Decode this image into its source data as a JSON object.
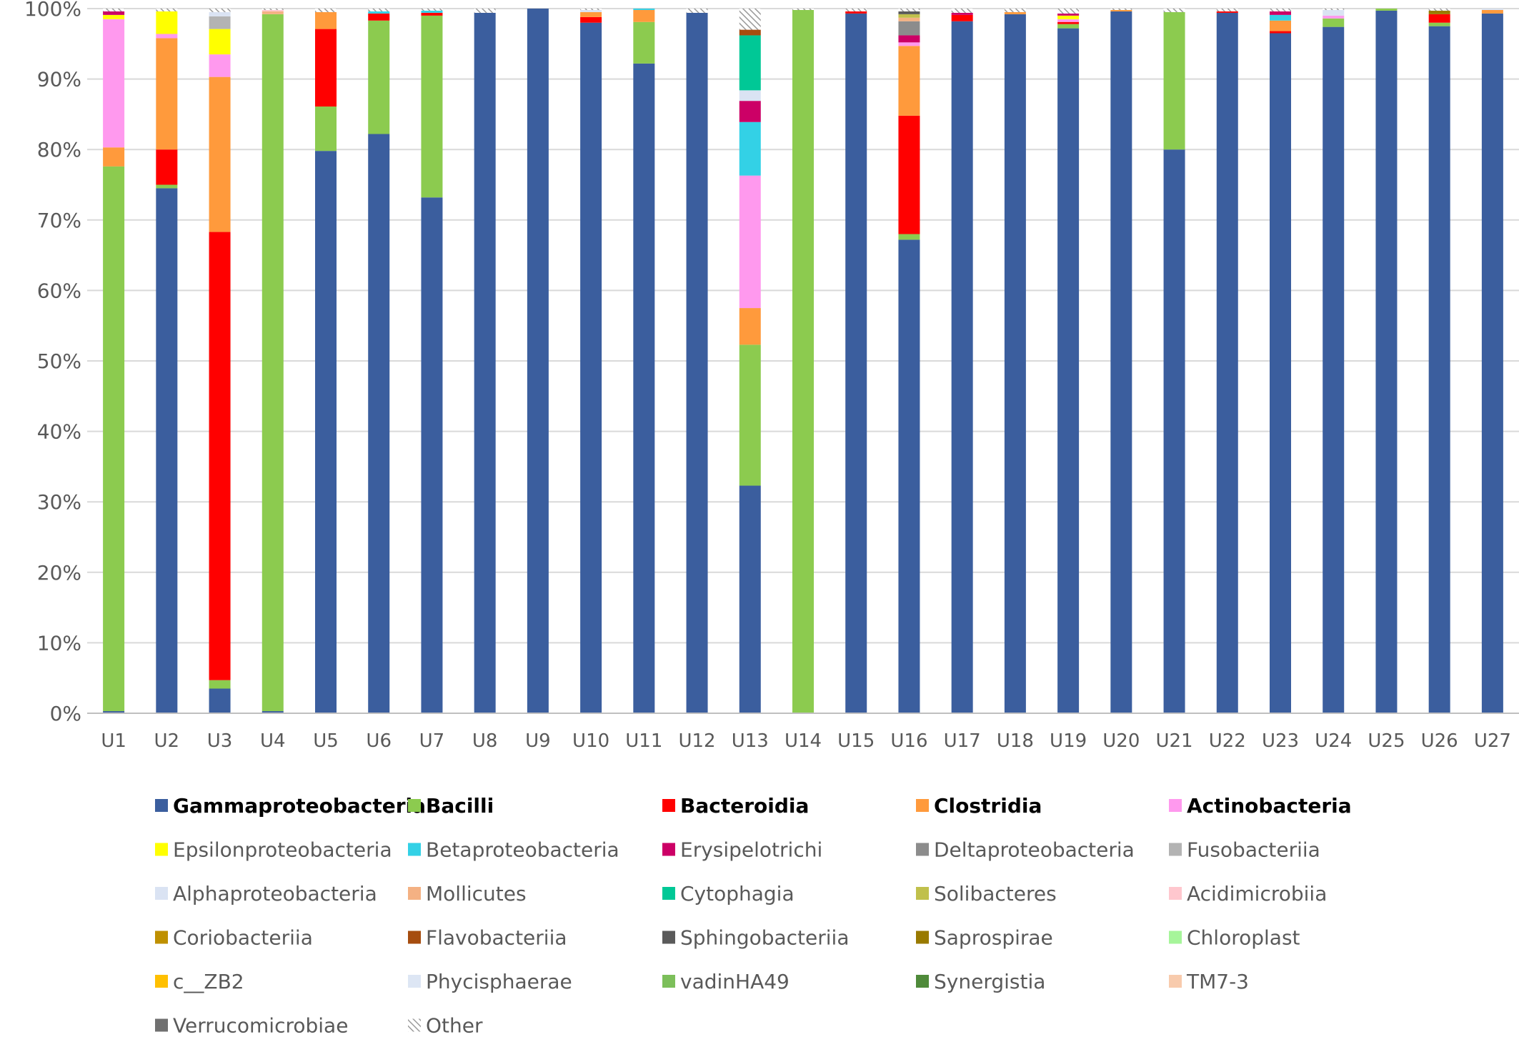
{
  "chart_data": {
    "type": "bar",
    "stacked": true,
    "title": "",
    "xlabel": "",
    "ylabel": "",
    "ylim": [
      0,
      100
    ],
    "y_tick_values": [
      0,
      10,
      20,
      30,
      40,
      50,
      60,
      70,
      80,
      90,
      100
    ],
    "y_tick_labels": [
      "0%",
      "10%",
      "20%",
      "30%",
      "40%",
      "50%",
      "60%",
      "70%",
      "80%",
      "90%",
      "100%"
    ],
    "grid": true,
    "legend_position": "bottom",
    "categories": [
      "U1",
      "U2",
      "U3",
      "U4",
      "U5",
      "U6",
      "U7",
      "U8",
      "U9",
      "U10",
      "U11",
      "U12",
      "U13",
      "U14",
      "U15",
      "U16",
      "U17",
      "U18",
      "U19",
      "U20",
      "U21",
      "U22",
      "U23",
      "U24",
      "U25",
      "U26",
      "U27"
    ],
    "series": [
      {
        "name": "Gammaproteobacteria",
        "color": "#3b5e9e",
        "bold": true,
        "values": [
          0.3,
          74.5,
          3.5,
          0.3,
          79.8,
          82.2,
          73.2,
          99.4,
          100,
          98,
          92.2,
          99.4,
          32.3,
          0,
          99.3,
          67.2,
          98.2,
          99.2,
          97.2,
          99.6,
          80,
          99.4,
          96.5,
          97.4,
          99.7,
          97.5,
          99.3
        ]
      },
      {
        "name": "Bacilli",
        "color": "#8ccb4f",
        "bold": true,
        "values": [
          77.3,
          0.5,
          1.2,
          98.9,
          6.3,
          16.1,
          25.8,
          0,
          0,
          0,
          5.9,
          0,
          20,
          99.8,
          0,
          0.8,
          0,
          0,
          0.6,
          0,
          19.5,
          0,
          0,
          1.2,
          0.3,
          0.5,
          0
        ]
      },
      {
        "name": "Bacteroidia",
        "color": "#ff0000",
        "bold": true,
        "values": [
          0,
          5,
          63.6,
          0,
          11,
          1,
          0.4,
          0,
          0,
          0.8,
          0,
          0,
          0,
          0,
          0.3,
          16.8,
          0.9,
          0,
          0.3,
          0,
          0,
          0.2,
          0.3,
          0,
          0,
          1.2,
          0
        ]
      },
      {
        "name": "Clostridia",
        "color": "#ff9a3c",
        "bold": true,
        "values": [
          2.7,
          15.8,
          22,
          0,
          2.4,
          0,
          0,
          0,
          0,
          0.7,
          1.7,
          0,
          5.2,
          0,
          0,
          9.9,
          0,
          0.3,
          0,
          0.2,
          0,
          0,
          1.5,
          0,
          0,
          0,
          0.5
        ]
      },
      {
        "name": "Actinobacteria",
        "color": "#ff99ee",
        "bold": true,
        "values": [
          18.2,
          0.6,
          3.2,
          0,
          0,
          0,
          0,
          0,
          0,
          0,
          0,
          0,
          18.8,
          0,
          0,
          0.5,
          0,
          0,
          0.4,
          0,
          0,
          0,
          0,
          0.4,
          0,
          0,
          0
        ]
      },
      {
        "name": "Epsilonproteobacteria",
        "color": "#ffff00",
        "values": [
          0.6,
          3.2,
          3.6,
          0,
          0,
          0,
          0,
          0,
          0,
          0,
          0,
          0,
          0,
          0,
          0,
          0,
          0,
          0,
          0.5,
          0,
          0,
          0,
          0,
          0,
          0,
          0,
          0
        ]
      },
      {
        "name": "Betaproteobacteria",
        "color": "#33d1e6",
        "values": [
          0,
          0,
          0,
          0,
          0,
          0.3,
          0.3,
          0,
          0,
          0,
          0.2,
          0,
          7.6,
          0,
          0,
          0,
          0,
          0,
          0,
          0,
          0,
          0,
          0.8,
          0,
          0,
          0,
          0
        ]
      },
      {
        "name": "Erysipelotrichi",
        "color": "#cc0066",
        "values": [
          0.5,
          0,
          0,
          0,
          0,
          0,
          0,
          0,
          0,
          0,
          0,
          0,
          3,
          0,
          0,
          1,
          0.3,
          0,
          0.3,
          0,
          0,
          0,
          0.5,
          0,
          0,
          0,
          0
        ]
      },
      {
        "name": "Deltaproteobacteria",
        "color": "#8c8c8c",
        "values": [
          0,
          0,
          0,
          0,
          0,
          0,
          0,
          0,
          0,
          0,
          0,
          0,
          0,
          0,
          0,
          2,
          0,
          0,
          0,
          0,
          0,
          0,
          0,
          0,
          0,
          0,
          0
        ]
      },
      {
        "name": "Fusobacteriia",
        "color": "#b3b3b3",
        "values": [
          0,
          0,
          1.8,
          0,
          0,
          0,
          0,
          0,
          0,
          0,
          0,
          0,
          0,
          0,
          0,
          0,
          0,
          0,
          0,
          0,
          0,
          0,
          0,
          0,
          0,
          0,
          0
        ]
      },
      {
        "name": "Alphaproteobacteria",
        "color": "#dae3f3",
        "values": [
          0,
          0,
          0.6,
          0,
          0,
          0,
          0,
          0,
          0,
          0.3,
          0,
          0,
          1.5,
          0,
          0,
          0,
          0,
          0,
          0,
          0,
          0,
          0,
          0,
          0.8,
          0,
          0,
          0.2
        ]
      },
      {
        "name": "Mollicutes",
        "color": "#f4b183",
        "values": [
          0,
          0,
          0,
          0.4,
          0,
          0,
          0,
          0,
          0,
          0,
          0,
          0,
          0,
          0,
          0,
          0.5,
          0,
          0,
          0,
          0,
          0,
          0,
          0,
          0,
          0,
          0,
          0
        ]
      },
      {
        "name": "Cytophagia",
        "color": "#00c896",
        "values": [
          0,
          0,
          0,
          0,
          0,
          0,
          0,
          0,
          0,
          0,
          0,
          0,
          7.8,
          0,
          0,
          0,
          0,
          0,
          0,
          0,
          0,
          0,
          0,
          0,
          0,
          0,
          0
        ]
      },
      {
        "name": "Solibacteres",
        "color": "#c0c04c",
        "values": [
          0,
          0,
          0,
          0,
          0,
          0,
          0,
          0,
          0,
          0,
          0,
          0,
          0,
          0,
          0,
          0.5,
          0,
          0,
          0,
          0,
          0,
          0,
          0,
          0,
          0,
          0,
          0
        ]
      },
      {
        "name": "Acidimicrobiia",
        "color": "#ffc7ce",
        "values": [
          0,
          0,
          0,
          0.2,
          0,
          0,
          0,
          0,
          0,
          0,
          0,
          0,
          0,
          0,
          0,
          0,
          0,
          0,
          0,
          0,
          0,
          0,
          0,
          0,
          0,
          0,
          0
        ]
      },
      {
        "name": "Coriobacteriia",
        "color": "#bf9000",
        "values": [
          0,
          0,
          0,
          0,
          0,
          0,
          0,
          0,
          0,
          0,
          0,
          0,
          0,
          0,
          0,
          0,
          0,
          0,
          0,
          0,
          0,
          0,
          0,
          0,
          0,
          0,
          0
        ]
      },
      {
        "name": "Flavobacteriia",
        "color": "#a64d0f",
        "values": [
          0,
          0,
          0,
          0,
          0,
          0,
          0,
          0,
          0,
          0,
          0,
          0,
          0.8,
          0,
          0,
          0,
          0,
          0,
          0,
          0,
          0,
          0,
          0,
          0,
          0,
          0,
          0
        ]
      },
      {
        "name": "Sphingobacteriia",
        "color": "#5a5a5a",
        "values": [
          0,
          0,
          0,
          0,
          0,
          0,
          0,
          0,
          0,
          0,
          0,
          0,
          0,
          0,
          0,
          0.4,
          0,
          0,
          0,
          0,
          0,
          0,
          0,
          0,
          0,
          0,
          0
        ]
      },
      {
        "name": "Saprospirae",
        "color": "#997a00",
        "values": [
          0,
          0,
          0,
          0,
          0,
          0,
          0,
          0,
          0,
          0,
          0,
          0,
          0,
          0,
          0,
          0,
          0,
          0,
          0,
          0,
          0,
          0,
          0,
          0,
          0,
          0.5,
          0
        ]
      },
      {
        "name": "Chloroplast",
        "color": "#a6f59a",
        "values": [
          0,
          0,
          0,
          0,
          0,
          0,
          0,
          0,
          0,
          0,
          0,
          0,
          0,
          0,
          0,
          0,
          0,
          0,
          0,
          0,
          0,
          0,
          0,
          0,
          0,
          0,
          0
        ]
      },
      {
        "name": "c__ZB2",
        "color": "#ffc000",
        "values": [
          0,
          0,
          0,
          0,
          0,
          0,
          0,
          0,
          0,
          0,
          0,
          0,
          0,
          0,
          0,
          0,
          0,
          0,
          0,
          0,
          0,
          0,
          0,
          0,
          0,
          0,
          0
        ]
      },
      {
        "name": "Phycisphaerae",
        "color": "#dde6f4",
        "values": [
          0,
          0,
          0,
          0,
          0,
          0,
          0,
          0,
          0,
          0,
          0,
          0,
          0,
          0,
          0,
          0,
          0,
          0,
          0,
          0,
          0,
          0,
          0,
          0,
          0,
          0,
          0
        ]
      },
      {
        "name": "vadinHA49",
        "color": "#7cbf5a",
        "values": [
          0,
          0,
          0,
          0,
          0,
          0,
          0,
          0,
          0,
          0,
          0,
          0,
          0,
          0,
          0,
          0,
          0,
          0,
          0,
          0,
          0,
          0,
          0,
          0,
          0,
          0,
          0
        ]
      },
      {
        "name": "Synergistia",
        "color": "#4f8a3a",
        "values": [
          0,
          0,
          0,
          0,
          0,
          0,
          0,
          0,
          0,
          0,
          0,
          0,
          0,
          0,
          0,
          0,
          0,
          0,
          0,
          0,
          0,
          0,
          0,
          0,
          0,
          0,
          0
        ]
      },
      {
        "name": "TM7-3",
        "color": "#f8cbad",
        "values": [
          0,
          0,
          0,
          0,
          0,
          0,
          0,
          0,
          0,
          0,
          0,
          0,
          0,
          0,
          0,
          0,
          0,
          0,
          0,
          0,
          0,
          0,
          0,
          0,
          0,
          0,
          0
        ]
      },
      {
        "name": "Verrucomicrobiae",
        "color": "#707070",
        "values": [
          0,
          0,
          0,
          0,
          0,
          0,
          0,
          0,
          0,
          0,
          0,
          0,
          0,
          0,
          0,
          0,
          0,
          0,
          0,
          0,
          0,
          0,
          0,
          0,
          0,
          0,
          0
        ]
      },
      {
        "name": "Other",
        "color": "#c8c8c8",
        "pattern": "hatch",
        "values": [
          0.4,
          0.4,
          0.5,
          0.2,
          0.5,
          0.4,
          0.3,
          0.6,
          0,
          0.2,
          0,
          0.6,
          3,
          0.2,
          0.4,
          0.4,
          0.6,
          0.5,
          0.7,
          0.2,
          0.5,
          0.4,
          0.4,
          0.2,
          0,
          0.3,
          0
        ]
      }
    ]
  }
}
